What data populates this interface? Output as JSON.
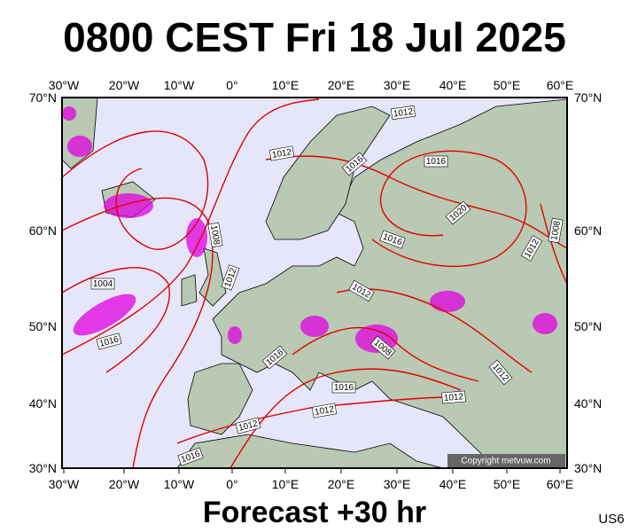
{
  "title": "0800 CEST Fri 18 Jul 2025",
  "longitude_labels": [
    "30°W",
    "20°W",
    "10°W",
    "0°",
    "10°E",
    "20°E",
    "30°E",
    "40°E",
    "50°E",
    "60°E"
  ],
  "latitude_labels": [
    "70°N",
    "60°N",
    "50°N",
    "40°N",
    "30°N"
  ],
  "isobar_labels": [
    "1012",
    "1012",
    "1016",
    "1016",
    "1020",
    "1008",
    "1012",
    "1004",
    "1016",
    "1012",
    "1012",
    "1008",
    "1008",
    "1016",
    "1016",
    "1016",
    "1012",
    "1012",
    "1012",
    "1012",
    "1016"
  ],
  "copyright": "Copyright metvuw.com",
  "forecast": "Forecast +30 hr",
  "code": "US6"
}
